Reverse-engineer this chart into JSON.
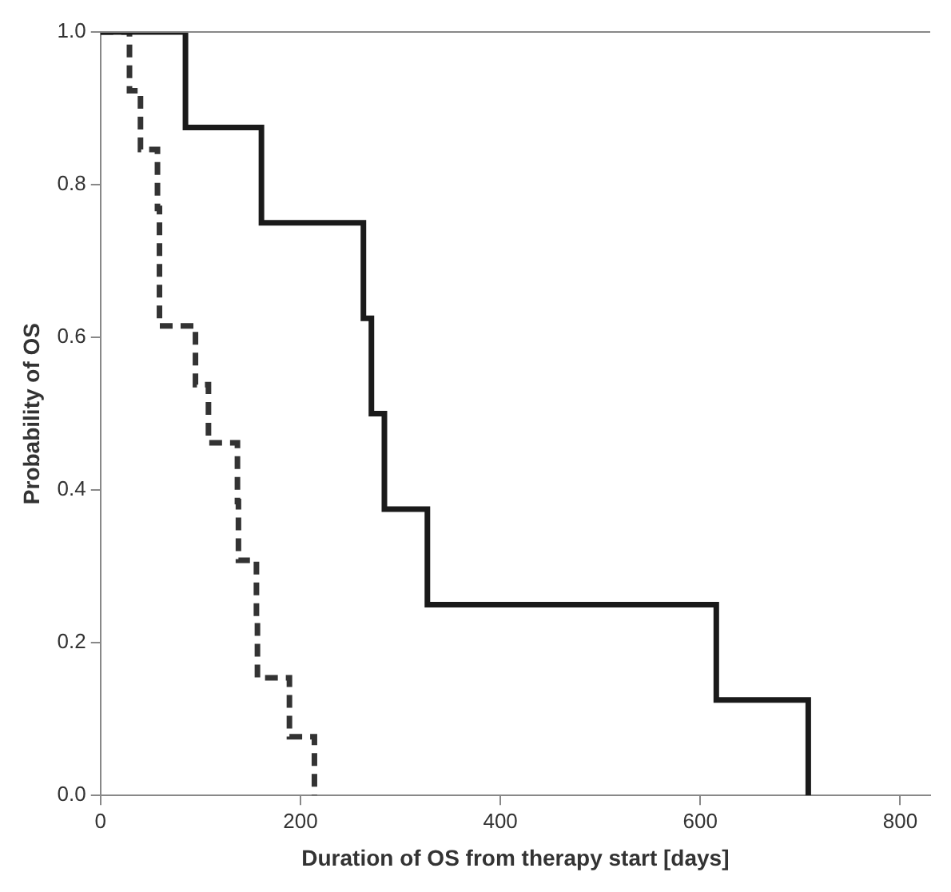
{
  "chart_data": {
    "type": "step",
    "xlabel": "Duration of OS from therapy start [days]",
    "ylabel": "Probability of OS",
    "xlim": [
      0,
      830
    ],
    "xticks": [
      0,
      200,
      400,
      600,
      800
    ],
    "ylim": [
      0,
      1.0
    ],
    "yticks": [
      {
        "value": 0,
        "label": "0.0"
      },
      {
        "value": 0.2,
        "label": "0.2"
      },
      {
        "value": 0.4,
        "label": "0.4"
      },
      {
        "value": 0.6,
        "label": "0.6"
      },
      {
        "value": 0.8,
        "label": "0.8"
      },
      {
        "value": 1.0,
        "label": "1.0"
      }
    ],
    "grid": false,
    "legend": false,
    "marker": "none",
    "series": [
      {
        "color": "#1a1a1a",
        "line_style": "solid",
        "x": [
          0,
          85,
          161,
          263,
          271,
          284,
          327,
          616,
          708
        ],
        "values": [
          1.0,
          0.875,
          0.75,
          0.625,
          0.5,
          0.375,
          0.25,
          0.125,
          0
        ]
      },
      {
        "color": "#333333",
        "line_style": "dashed",
        "x": [
          0,
          29,
          40,
          57,
          59,
          95,
          108,
          137,
          138,
          156,
          157,
          189,
          214
        ],
        "values": [
          1.0,
          0.923,
          0.846,
          0.769,
          0.615,
          0.538,
          0.462,
          0.385,
          0.308,
          0.231,
          0.154,
          0.077,
          0
        ]
      }
    ]
  }
}
